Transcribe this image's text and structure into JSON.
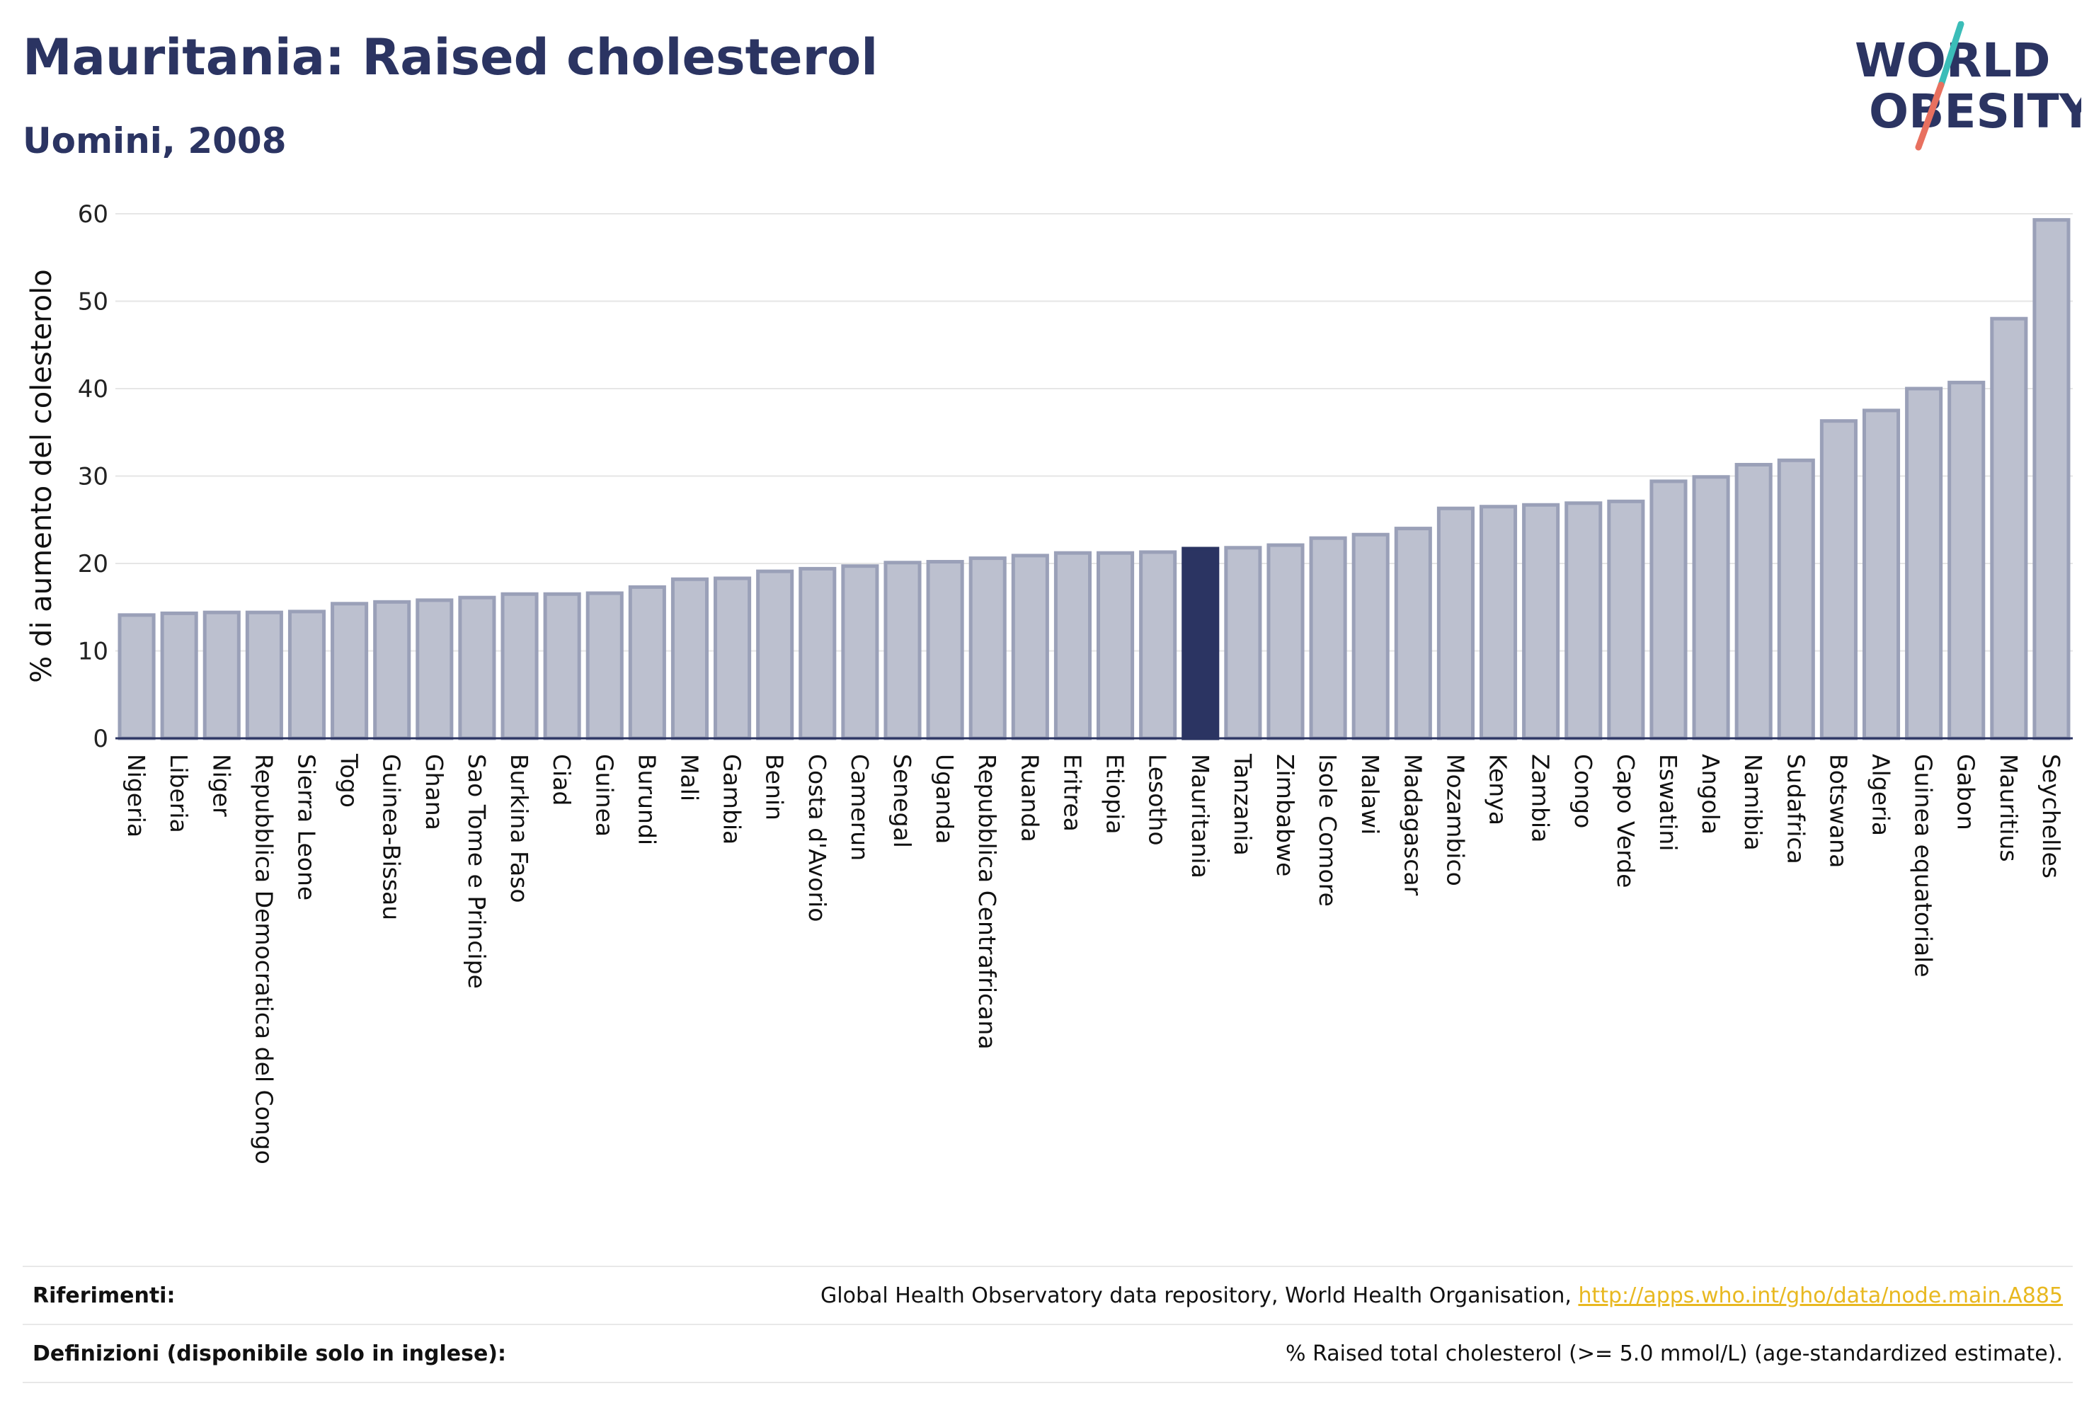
{
  "header": {
    "title": "Mauritania: Raised cholesterol",
    "subtitle": "Uomini, 2008"
  },
  "logo": {
    "line1": "WORLD",
    "line2": "OBESITY",
    "colors": {
      "text": "#2b3462",
      "slash_teal": "#3bbdb8",
      "slash_red": "#e8705f"
    }
  },
  "chart_data": {
    "type": "bar",
    "ylabel": "% di aumento del colesterolo",
    "xlabel": "",
    "ylim": [
      0,
      60
    ],
    "yticks": [
      0,
      10,
      20,
      30,
      40,
      50,
      60
    ],
    "grid": true,
    "highlight": "Mauritania",
    "colors": {
      "bar": "#bcc0cf",
      "bar_edge": "#9aa0b8",
      "highlight": "#2b3462"
    },
    "categories": [
      "Nigeria",
      "Liberia",
      "Niger",
      "Repubblica Democratica del Congo",
      "Sierra Leone",
      "Togo",
      "Guinea-Bissau",
      "Ghana",
      "Sao Tome e Principe",
      "Burkina Faso",
      "Ciad",
      "Guinea",
      "Burundi",
      "Mali",
      "Gambia",
      "Benin",
      "Costa d'Avorio",
      "Camerun",
      "Senegal",
      "Uganda",
      "Repubblica Centrafricana",
      "Ruanda",
      "Eritrea",
      "Etiopia",
      "Lesotho",
      "Mauritania",
      "Tanzania",
      "Zimbabwe",
      "Isole Comore",
      "Malawi",
      "Madagascar",
      "Mozambico",
      "Kenya",
      "Zambia",
      "Congo",
      "Capo Verde",
      "Eswatini",
      "Angola",
      "Namibia",
      "Sudafrica",
      "Botswana",
      "Algeria",
      "Guinea equatoriale",
      "Gabon",
      "Mauritius",
      "Seychelles"
    ],
    "values": [
      14.1,
      14.3,
      14.4,
      14.4,
      14.5,
      15.4,
      15.6,
      15.8,
      16.1,
      16.5,
      16.5,
      16.6,
      17.3,
      18.2,
      18.3,
      19.1,
      19.4,
      19.7,
      20.1,
      20.2,
      20.6,
      20.9,
      21.2,
      21.2,
      21.3,
      21.7,
      21.8,
      22.1,
      22.9,
      23.3,
      24.0,
      26.3,
      26.5,
      26.7,
      26.9,
      27.1,
      29.4,
      29.9,
      31.3,
      31.8,
      36.3,
      37.5,
      40.0,
      40.7,
      48.0,
      59.3
    ]
  },
  "footer": {
    "references_label": "Riferimenti:",
    "references_text": "Global Health Observatory data repository, World Health Organisation, ",
    "references_link": "http://apps.who.int/gho/data/node.main.A885",
    "definitions_label": "Definizioni (disponibile solo in inglese):",
    "definitions_text": "% Raised total cholesterol (>= 5.0 mmol/L) (age-standardized estimate)."
  }
}
